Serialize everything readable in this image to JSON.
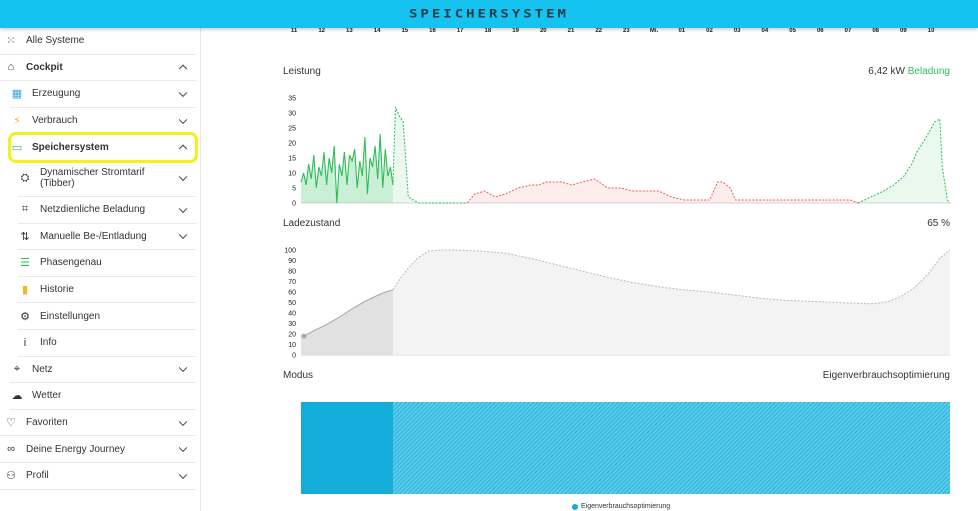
{
  "app": {
    "title": "SPEICHERSYSTEM"
  },
  "sidebar": {
    "items": [
      {
        "label": "Alle Systeme",
        "icon": "grid-icon",
        "glyph": "⁙",
        "level": 0
      },
      {
        "label": "Cockpit",
        "icon": "home-icon",
        "glyph": "⌂",
        "level": 0,
        "bold": true,
        "chevron": "up"
      },
      {
        "label": "Erzeugung",
        "icon": "solar-panel-icon",
        "glyph": "▦",
        "level": 1,
        "chevron": "down",
        "color": "#3aa7e0"
      },
      {
        "label": "Verbrauch",
        "icon": "lightning-icon",
        "glyph": "⚡",
        "level": 1,
        "chevron": "down",
        "color": "#f2b71d"
      },
      {
        "label": "Speichersystem",
        "icon": "battery-icon",
        "glyph": "▭",
        "level": 1,
        "bold": true,
        "chevron": "up",
        "selected": true,
        "color": "#2fbd5a"
      },
      {
        "label": "Dynamischer Stromtarif (Tibber)",
        "icon": "tariff-icon",
        "glyph": "⛭",
        "level": 2,
        "chevron": "down",
        "tall": true
      },
      {
        "label": "Netzdienliche Beladung",
        "icon": "grid-charging-icon",
        "glyph": "⌗",
        "level": 2,
        "chevron": "down"
      },
      {
        "label": "Manuelle Be-/Entladung",
        "icon": "up-down-arrows-icon",
        "glyph": "⇅",
        "level": 2,
        "chevron": "down"
      },
      {
        "label": "Phasengenau",
        "icon": "list-icon",
        "glyph": "☰",
        "level": 2,
        "color": "#2fbd5a"
      },
      {
        "label": "Historie",
        "icon": "bar-chart-icon",
        "glyph": "▮",
        "level": 2,
        "color": "#f2b71d"
      },
      {
        "label": "Einstellungen",
        "icon": "gear-icon",
        "glyph": "⚙",
        "level": 2
      },
      {
        "label": "Info",
        "icon": "info-icon",
        "glyph": "i",
        "level": 2
      },
      {
        "label": "Netz",
        "icon": "power-pylon-icon",
        "glyph": "⌖",
        "level": 1,
        "chevron": "down"
      },
      {
        "label": "Wetter",
        "icon": "weather-icon",
        "glyph": "☁",
        "level": 1
      },
      {
        "label": "Favoriten",
        "icon": "heart-icon",
        "glyph": "♡",
        "level": 0,
        "chevron": "down"
      },
      {
        "label": "Deine Energy Journey",
        "icon": "journey-icon",
        "glyph": "∞",
        "level": 0,
        "chevron": "down"
      },
      {
        "label": "Profil",
        "icon": "user-icon",
        "glyph": "⚇",
        "level": 0,
        "chevron": "down"
      }
    ]
  },
  "time_axis": {
    "labels": [
      "11",
      "12",
      "13",
      "14",
      "15",
      "16",
      "17",
      "18",
      "19",
      "20",
      "21",
      "22",
      "23",
      "Mi.",
      "01",
      "02",
      "03",
      "04",
      "05",
      "06",
      "07",
      "08",
      "09",
      "10"
    ]
  },
  "leistung": {
    "label": "Leistung",
    "value": "6,42 kW",
    "status": "Beladung",
    "colors": {
      "charge": "#2fbd5a",
      "discharge": "#f05a4b"
    }
  },
  "ladezustand": {
    "label": "Ladezustand",
    "value": "65 %"
  },
  "modus": {
    "label": "Modus",
    "value": "Eigenverbrauchsoptimierung",
    "legend": "Eigenverbrauchsoptimierung",
    "color": "#14acd8"
  },
  "chart_data": [
    {
      "type": "area",
      "title": "Leistung",
      "ylim": [
        0,
        35
      ],
      "yticks": [
        0,
        5,
        10,
        15,
        20,
        25,
        30,
        35
      ],
      "x_unit": "hours since 10:30",
      "series": [
        {
          "role": "charge-history",
          "x": [
            0,
            0.1,
            0.2,
            0.3,
            0.4,
            0.5,
            0.6,
            0.7,
            0.8,
            0.9,
            1.0,
            1.1,
            1.2,
            1.3,
            1.4,
            1.5,
            1.6,
            1.7,
            1.8,
            1.9,
            2.0,
            2.1,
            2.2,
            2.3,
            2.4,
            2.5,
            2.6,
            2.7,
            2.8,
            2.9,
            3.0,
            3.1,
            3.2,
            3.3,
            3.4,
            3.5,
            3.6
          ],
          "y": [
            7,
            10,
            6,
            13,
            8,
            16,
            5,
            12,
            9,
            17,
            6,
            15,
            10,
            19,
            0,
            13,
            9,
            17,
            6,
            16,
            14,
            18,
            5,
            14,
            9,
            22,
            3,
            15,
            12,
            19,
            8,
            23,
            5,
            18,
            9,
            12,
            6
          ]
        },
        {
          "role": "charge-forecast",
          "x": [
            3.6,
            3.7,
            3.85,
            4.0,
            4.2,
            4.6,
            5.0,
            6.5,
            21.8,
            22.3,
            22.8,
            23.2,
            23.6,
            23.9,
            24.1,
            24.4,
            24.6,
            24.8,
            25.0,
            25.1,
            25.3,
            25.4
          ],
          "y": [
            7,
            32,
            29,
            27,
            2,
            0,
            0,
            0,
            0,
            2,
            4,
            6,
            9,
            13,
            17,
            21,
            24,
            27,
            28,
            12,
            1,
            0
          ]
        },
        {
          "role": "discharge-forecast",
          "x": [
            6.5,
            6.8,
            7.2,
            7.6,
            8.0,
            8.5,
            9.0,
            9.3,
            9.6,
            10.0,
            10.2,
            10.6,
            11.0,
            11.5,
            12.0,
            12.5,
            13.0,
            13.5,
            14.0,
            14.5,
            15.0,
            15.5,
            16.0,
            16.3,
            16.5,
            16.8,
            17.0,
            17.5,
            18.0,
            19.0,
            20.0,
            21.0,
            21.5,
            21.8
          ],
          "y": [
            0,
            3,
            4,
            2,
            3,
            5,
            6,
            6,
            7,
            7,
            7,
            6,
            7,
            8,
            5,
            5,
            4,
            4,
            4,
            2,
            1,
            1,
            1,
            7,
            7,
            5,
            1,
            1,
            1,
            1,
            1,
            1,
            1,
            0
          ]
        }
      ]
    },
    {
      "type": "area",
      "title": "Ladezustand",
      "ylim": [
        0,
        100
      ],
      "yticks": [
        0,
        10,
        20,
        30,
        40,
        50,
        60,
        70,
        80,
        90,
        100
      ],
      "x_unit": "hours since 10:30",
      "series": [
        {
          "role": "history",
          "x": [
            0,
            0.2,
            0.5,
            1.0,
            1.5,
            2.0,
            2.5,
            3.0,
            3.3,
            3.6
          ],
          "y": [
            18,
            19,
            23,
            29,
            36,
            44,
            51,
            57,
            60,
            62
          ]
        },
        {
          "role": "forecast",
          "x": [
            3.6,
            3.8,
            4.2,
            4.6,
            5.0,
            5.5,
            6.0,
            7.0,
            8.0,
            9.0,
            10.0,
            11.0,
            12.0,
            13.0,
            14.0,
            15.0,
            16.0,
            17.0,
            18.0,
            19.0,
            20.0,
            21.0,
            22.0,
            22.5,
            23.0,
            23.5,
            24.0,
            24.5,
            25.0,
            25.4
          ],
          "y": [
            62,
            70,
            83,
            93,
            99,
            100,
            100,
            99,
            97,
            92,
            86,
            80,
            74,
            69,
            65,
            62,
            60,
            57,
            54,
            52,
            51,
            50,
            49,
            49,
            51,
            56,
            64,
            76,
            92,
            100
          ]
        }
      ]
    },
    {
      "type": "bar",
      "title": "Modus",
      "series": [
        {
          "name": "Eigenverbrauchsoptimierung",
          "x_start": 0,
          "x_end": 25.4
        }
      ],
      "history_end": 3.6
    }
  ]
}
